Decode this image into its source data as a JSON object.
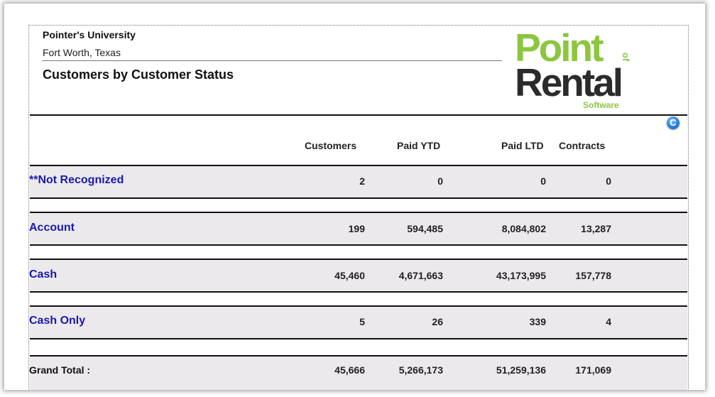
{
  "header": {
    "company": "Pointer's University",
    "city": "Fort Worth, Texas",
    "report_title": "Customers by Customer Status"
  },
  "logo": {
    "word1": "Point",
    "of": "of",
    "word2": "Rental",
    "sub": "Software",
    "colors": {
      "green": "#8cc63f",
      "dark": "#2b2b2b"
    }
  },
  "refresh_icon": {
    "icon": "refresh-icon",
    "glyph": "C"
  },
  "columns": [
    "Customers",
    "Paid YTD",
    "Paid LTD",
    "Contracts"
  ],
  "rows": [
    {
      "label": "**Not Recognized",
      "values": [
        "2",
        "0",
        "0",
        "0"
      ]
    },
    {
      "label": "Account",
      "values": [
        "199",
        "594,485",
        "8,084,802",
        "13,287"
      ]
    },
    {
      "label": "Cash",
      "values": [
        "45,460",
        "4,671,663",
        "43,173,995",
        "157,778"
      ]
    },
    {
      "label": "Cash Only",
      "values": [
        "5",
        "26",
        "339",
        "4"
      ]
    }
  ],
  "grand_total": {
    "label": "Grand Total :",
    "values": [
      "45,666",
      "5,266,173",
      "51,259,136",
      "171,069"
    ]
  },
  "colors": {
    "link": "#1a1aaa",
    "band": "#ebe9eb",
    "logo_green": "#8cc63f"
  }
}
